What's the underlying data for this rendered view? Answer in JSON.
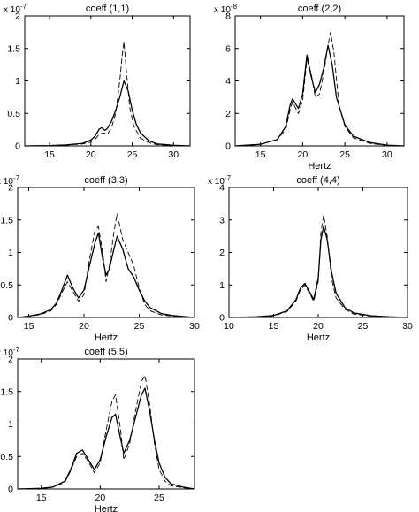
{
  "chart_data": [
    {
      "type": "line",
      "title": "coeff (1,1)",
      "xlabel": "",
      "ylabel": "",
      "y_multiplier": "x 10",
      "y_exponent": "-7",
      "xlim": [
        12,
        32
      ],
      "ylim": [
        0,
        2e-07
      ],
      "x_ticks": [
        15,
        20,
        25,
        30
      ],
      "y_ticks": [
        0,
        0.5,
        1,
        1.5,
        2
      ],
      "y_scale": 1e-07,
      "grid": false,
      "series": [
        {
          "style": "solid",
          "x": [
            12,
            15,
            17,
            19,
            20,
            20.5,
            21,
            21.3,
            21.7,
            22,
            22.5,
            23,
            23.5,
            24,
            24.5,
            25,
            25.5,
            26,
            27,
            28,
            30,
            32
          ],
          "y": [
            0,
            5e-10,
            1.5e-09,
            4e-09,
            9e-09,
            1.5e-08,
            2.6e-08,
            2.8e-08,
            2.4e-08,
            2.7e-08,
            3.8e-08,
            5.5e-08,
            7.5e-08,
            1e-07,
            8.5e-08,
            5.5e-08,
            3.3e-08,
            2e-08,
            8e-09,
            3e-09,
            1e-09,
            0
          ]
        },
        {
          "style": "dashed",
          "x": [
            12,
            15,
            17,
            19,
            20,
            20.5,
            21,
            21.5,
            22,
            22.5,
            23,
            23.5,
            23.8,
            24,
            24.3,
            24.7,
            25.2,
            26,
            27,
            28,
            30,
            32
          ],
          "y": [
            0,
            5e-10,
            1.5e-09,
            3e-09,
            6e-09,
            1e-08,
            1.8e-08,
            2e-08,
            1.8e-08,
            2.8e-08,
            5e-08,
            1e-07,
            1.4e-07,
            1.6e-07,
            1.15e-07,
            6e-08,
            3e-08,
            1.2e-08,
            5e-09,
            2e-09,
            5e-10,
            0
          ]
        }
      ]
    },
    {
      "type": "line",
      "title": "coeff (2,2)",
      "xlabel": "Hertz",
      "ylabel": "",
      "y_multiplier": "x 10",
      "y_exponent": "-8",
      "xlim": [
        12,
        32
      ],
      "ylim": [
        0,
        8e-08
      ],
      "x_ticks": [
        15,
        20,
        25,
        30
      ],
      "y_ticks": [
        0,
        2,
        4,
        6,
        8
      ],
      "y_scale": 1e-08,
      "grid": false,
      "series": [
        {
          "style": "solid",
          "x": [
            12,
            15,
            17,
            18,
            18.5,
            18.8,
            19.5,
            20,
            20.5,
            21,
            21.5,
            22,
            22.5,
            23,
            23.5,
            24,
            25,
            26,
            28,
            30,
            32
          ],
          "y": [
            0,
            1e-09,
            4e-09,
            1.2e-08,
            2.5e-08,
            2.9e-08,
            2.3e-08,
            3.2e-08,
            5.6e-08,
            4.3e-08,
            3.3e-08,
            3.8e-08,
            4.8e-08,
            6.2e-08,
            5e-08,
            3e-08,
            1.3e-08,
            6e-09,
            2e-09,
            5e-10,
            0
          ]
        },
        {
          "style": "dashed",
          "x": [
            12,
            15,
            17,
            18,
            18.5,
            18.8,
            19.5,
            20,
            20.5,
            21,
            21.5,
            22,
            22.5,
            23,
            23.3,
            23.7,
            24.3,
            25,
            26,
            28,
            30,
            32
          ],
          "y": [
            0,
            1e-09,
            4e-09,
            1e-08,
            2.2e-08,
            2.7e-08,
            2e-08,
            2.8e-08,
            5.3e-08,
            4.5e-08,
            3e-08,
            3.2e-08,
            4.5e-08,
            6.2e-08,
            7e-08,
            5.8e-08,
            2.5e-08,
            1.2e-08,
            5e-09,
            1.5e-09,
            3e-10,
            0
          ]
        }
      ]
    },
    {
      "type": "line",
      "title": "coeff (3,3)",
      "xlabel": "Hertz",
      "ylabel": "",
      "y_multiplier": "x 10",
      "y_exponent": "-7",
      "xlim": [
        14,
        30
      ],
      "ylim": [
        0,
        2e-07
      ],
      "x_ticks": [
        15,
        20,
        25,
        30
      ],
      "y_ticks": [
        0,
        0.5,
        1,
        1.5,
        2
      ],
      "y_scale": 1e-07,
      "grid": false,
      "series": [
        {
          "style": "solid",
          "x": [
            14,
            15,
            16,
            17,
            17.5,
            18,
            18.5,
            19,
            19.5,
            20,
            20.5,
            21,
            21.3,
            21.7,
            22,
            22.3,
            22.7,
            23,
            23.5,
            24,
            24.5,
            25,
            25.5,
            26,
            27,
            28,
            30
          ],
          "y": [
            0,
            2e-09,
            5e-09,
            1.2e-08,
            2.2e-08,
            4.2e-08,
            6.5e-08,
            4.5e-08,
            3e-08,
            4.2e-08,
            8e-08,
            1.15e-07,
            1.3e-07,
            9e-08,
            6.5e-08,
            7.5e-08,
            1.05e-07,
            1.25e-07,
            1.05e-07,
            7.5e-08,
            6.2e-08,
            4.2e-08,
            2.5e-08,
            1.5e-08,
            6e-09,
            3e-09,
            0
          ]
        },
        {
          "style": "dashed",
          "x": [
            14,
            15,
            16,
            17,
            17.5,
            18,
            18.5,
            19,
            19.5,
            20,
            20.5,
            21,
            21.3,
            21.7,
            22,
            22.3,
            22.7,
            23,
            23.5,
            24,
            24.5,
            25,
            25.5,
            26,
            27,
            28,
            30
          ],
          "y": [
            0,
            2e-09,
            4e-09,
            1e-08,
            2e-08,
            3.8e-08,
            5.5e-08,
            4e-08,
            2.5e-08,
            3.5e-08,
            9e-08,
            1.35e-07,
            1.4e-07,
            1e-07,
            5.5e-08,
            8e-08,
            1.3e-07,
            1.6e-07,
            1.2e-07,
            1e-07,
            8e-08,
            4.5e-08,
            2e-08,
            1e-08,
            4e-09,
            2e-09,
            0
          ]
        }
      ]
    },
    {
      "type": "line",
      "title": "coeff (4,4)",
      "xlabel": "Hertz",
      "ylabel": "",
      "y_multiplier": "x 10",
      "y_exponent": "-7",
      "xlim": [
        10,
        30
      ],
      "ylim": [
        0,
        4e-07
      ],
      "x_ticks": [
        10,
        15,
        20,
        25,
        30
      ],
      "y_ticks": [
        0,
        1,
        2,
        3,
        4
      ],
      "y_scale": 1e-07,
      "grid": false,
      "series": [
        {
          "style": "solid",
          "x": [
            10,
            13,
            15,
            16.5,
            17.5,
            18,
            18.5,
            19,
            19.5,
            20,
            20.3,
            20.6,
            21,
            21.5,
            22,
            23,
            24,
            26,
            28,
            30
          ],
          "y": [
            0,
            2e-09,
            6e-09,
            2e-08,
            5.5e-08,
            9e-08,
            1.05e-07,
            8e-08,
            5.5e-08,
            1.2e-07,
            2.4e-07,
            2.8e-07,
            2.4e-07,
            1.4e-07,
            7.5e-08,
            3e-08,
            1.4e-08,
            5e-09,
            2e-09,
            0
          ]
        },
        {
          "style": "dashed",
          "x": [
            10,
            13,
            15,
            16.5,
            17.5,
            18,
            18.5,
            19,
            19.5,
            20,
            20.3,
            20.6,
            21,
            21.5,
            22,
            23,
            24,
            26,
            28,
            30
          ],
          "y": [
            0,
            2e-09,
            5e-09,
            1.8e-08,
            5e-08,
            8.5e-08,
            1e-07,
            7.5e-08,
            5e-08,
            1.1e-07,
            2.6e-07,
            3.15e-07,
            2.5e-07,
            1.2e-07,
            6e-08,
            2.5e-08,
            1e-08,
            4e-09,
            1e-09,
            0
          ]
        }
      ]
    },
    {
      "type": "line",
      "title": "coeff (5,5)",
      "xlabel": "Hertz",
      "ylabel": "",
      "y_multiplier": "x 10",
      "y_exponent": "-7",
      "xlim": [
        13,
        28
      ],
      "ylim": [
        0,
        2e-07
      ],
      "x_ticks": [
        15,
        20,
        25
      ],
      "y_ticks": [
        0,
        0.5,
        1,
        1.5,
        2
      ],
      "y_scale": 1e-07,
      "grid": false,
      "series": [
        {
          "style": "solid",
          "x": [
            13,
            15,
            16,
            17,
            17.5,
            18,
            18.5,
            19,
            19.5,
            20,
            20.5,
            21,
            21.3,
            21.7,
            22,
            22.5,
            23,
            23.5,
            23.8,
            24.2,
            24.6,
            25,
            25.5,
            26,
            27,
            28
          ],
          "y": [
            0,
            1e-09,
            3e-09,
            1.2e-08,
            3e-08,
            5.5e-08,
            6e-08,
            4.5e-08,
            3e-08,
            4.5e-08,
            8e-08,
            1.1e-07,
            1.15e-07,
            8e-08,
            5.5e-08,
            7.5e-08,
            1.1e-07,
            1.45e-07,
            1.55e-07,
            1.2e-07,
            7.5e-08,
            4e-08,
            1.8e-08,
            8e-09,
            3e-09,
            0
          ]
        },
        {
          "style": "dashed",
          "x": [
            13,
            15,
            16,
            17,
            17.5,
            18,
            18.5,
            19,
            19.5,
            20,
            20.5,
            21,
            21.3,
            21.7,
            22,
            22.5,
            23,
            23.5,
            23.8,
            24.2,
            24.6,
            25,
            25.5,
            26,
            27,
            28
          ],
          "y": [
            0,
            1e-09,
            3e-09,
            1e-08,
            2.8e-08,
            5e-08,
            5.5e-08,
            4.2e-08,
            2.5e-08,
            4e-08,
            9e-08,
            1.35e-07,
            1.45e-07,
            9.5e-08,
            4.5e-08,
            7e-08,
            1.2e-07,
            1.65e-07,
            1.75e-07,
            1.3e-07,
            7e-08,
            3e-08,
            1.2e-08,
            5e-09,
            2e-09,
            0
          ]
        }
      ]
    }
  ]
}
